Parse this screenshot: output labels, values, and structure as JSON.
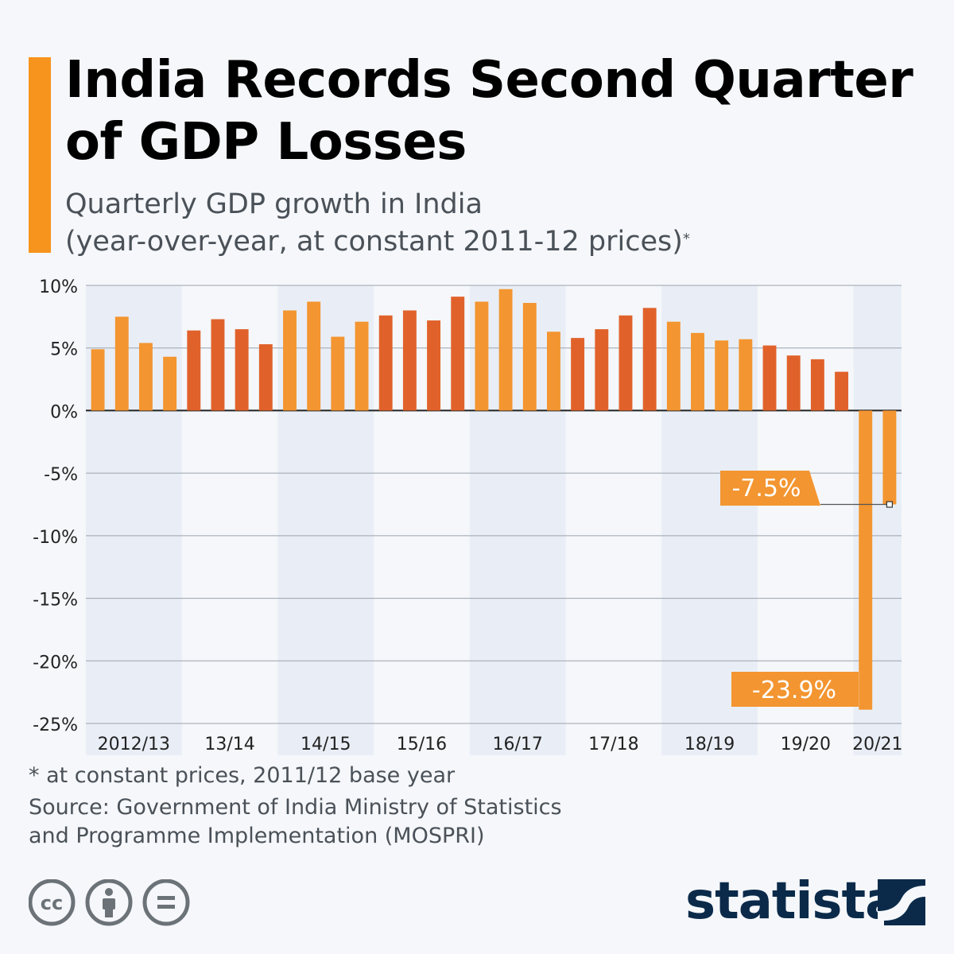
{
  "header": {
    "title": "India Records Second Quarter of GDP Losses",
    "subtitle_line1": "Quarterly GDP growth in India",
    "subtitle_line2": "(year-over-year, at constant 2011-12 prices)",
    "subtitle_marker": "*"
  },
  "footer": {
    "note": "* at constant prices, 2011/12 base year",
    "source_line1": "Source: Government of India Ministry of Statistics",
    "source_line2": "and Programme Implementation (MOSPRI)",
    "brand": "statista",
    "license_icons": [
      "cc-icon",
      "attribution-icon",
      "no-derivatives-icon"
    ]
  },
  "colors": {
    "accent": "#f7941d",
    "bar_light": "#f39530",
    "bar_dark": "#e0622a",
    "band": "#e9eef6",
    "grid": "#9aa3ad",
    "brand": "#0b2a4a"
  },
  "chart_data": {
    "type": "bar",
    "yticks": [
      10,
      5,
      0,
      -5,
      -10,
      -15,
      -20,
      -25
    ],
    "ytick_labels": [
      "10%",
      "5%",
      "0%",
      "-5%",
      "-10%",
      "-15%",
      "-20%",
      "-25%"
    ],
    "ylim": [
      -25,
      10
    ],
    "grid": true,
    "groups": [
      {
        "label": "2012/13",
        "values": [
          4.9,
          7.5,
          5.4,
          4.3
        ]
      },
      {
        "label": "13/14",
        "values": [
          6.4,
          7.3,
          6.5,
          5.3
        ]
      },
      {
        "label": "14/15",
        "values": [
          8.0,
          8.7,
          5.9,
          7.1
        ]
      },
      {
        "label": "15/16",
        "values": [
          7.6,
          8.0,
          7.2,
          9.1
        ]
      },
      {
        "label": "16/17",
        "values": [
          8.7,
          9.7,
          8.6,
          6.3
        ]
      },
      {
        "label": "17/18",
        "values": [
          5.8,
          6.5,
          7.6,
          8.2
        ]
      },
      {
        "label": "18/19",
        "values": [
          7.1,
          6.2,
          5.6,
          5.7
        ]
      },
      {
        "label": "19/20",
        "values": [
          5.2,
          4.4,
          4.1,
          3.1
        ]
      },
      {
        "label": "20/21",
        "values": [
          -23.9,
          -7.5
        ]
      }
    ],
    "annotations": [
      {
        "group": 8,
        "index": 1,
        "value": -7.5,
        "label": "-7.5%"
      },
      {
        "group": 8,
        "index": 0,
        "value": -23.9,
        "label": "-23.9%"
      }
    ]
  }
}
